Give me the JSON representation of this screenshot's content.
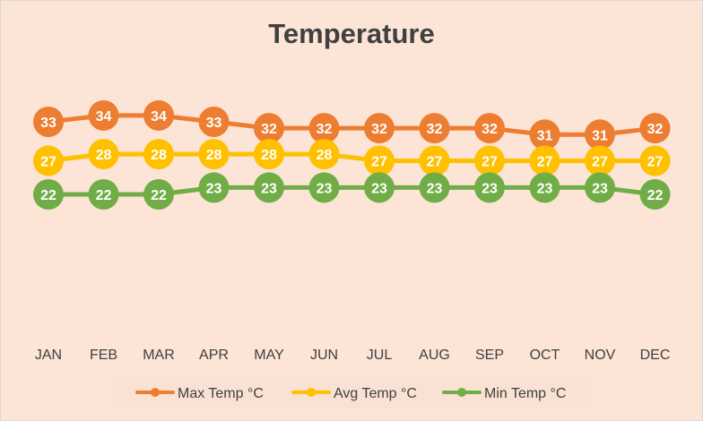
{
  "chart_data": {
    "type": "line",
    "title": "Temperature",
    "categories": [
      "JAN",
      "FEB",
      "MAR",
      "APR",
      "MAY",
      "JUN",
      "JUL",
      "AUG",
      "SEP",
      "OCT",
      "NOV",
      "DEC"
    ],
    "series": [
      {
        "name": "Max Temp °C",
        "color": "#ed7d31",
        "values": [
          33,
          34,
          34,
          33,
          32,
          32,
          32,
          32,
          32,
          31,
          31,
          32
        ]
      },
      {
        "name": "Avg Temp °C",
        "color": "#ffc000",
        "values": [
          27,
          28,
          28,
          28,
          28,
          28,
          27,
          27,
          27,
          27,
          27,
          27
        ]
      },
      {
        "name": "Min Temp °C",
        "color": "#70ad47",
        "values": [
          22,
          22,
          22,
          23,
          23,
          23,
          23,
          23,
          23,
          23,
          23,
          22
        ]
      }
    ],
    "ylim": [
      0,
      40
    ],
    "grid": false,
    "legend": "bottom",
    "background": "#fce4d6"
  }
}
